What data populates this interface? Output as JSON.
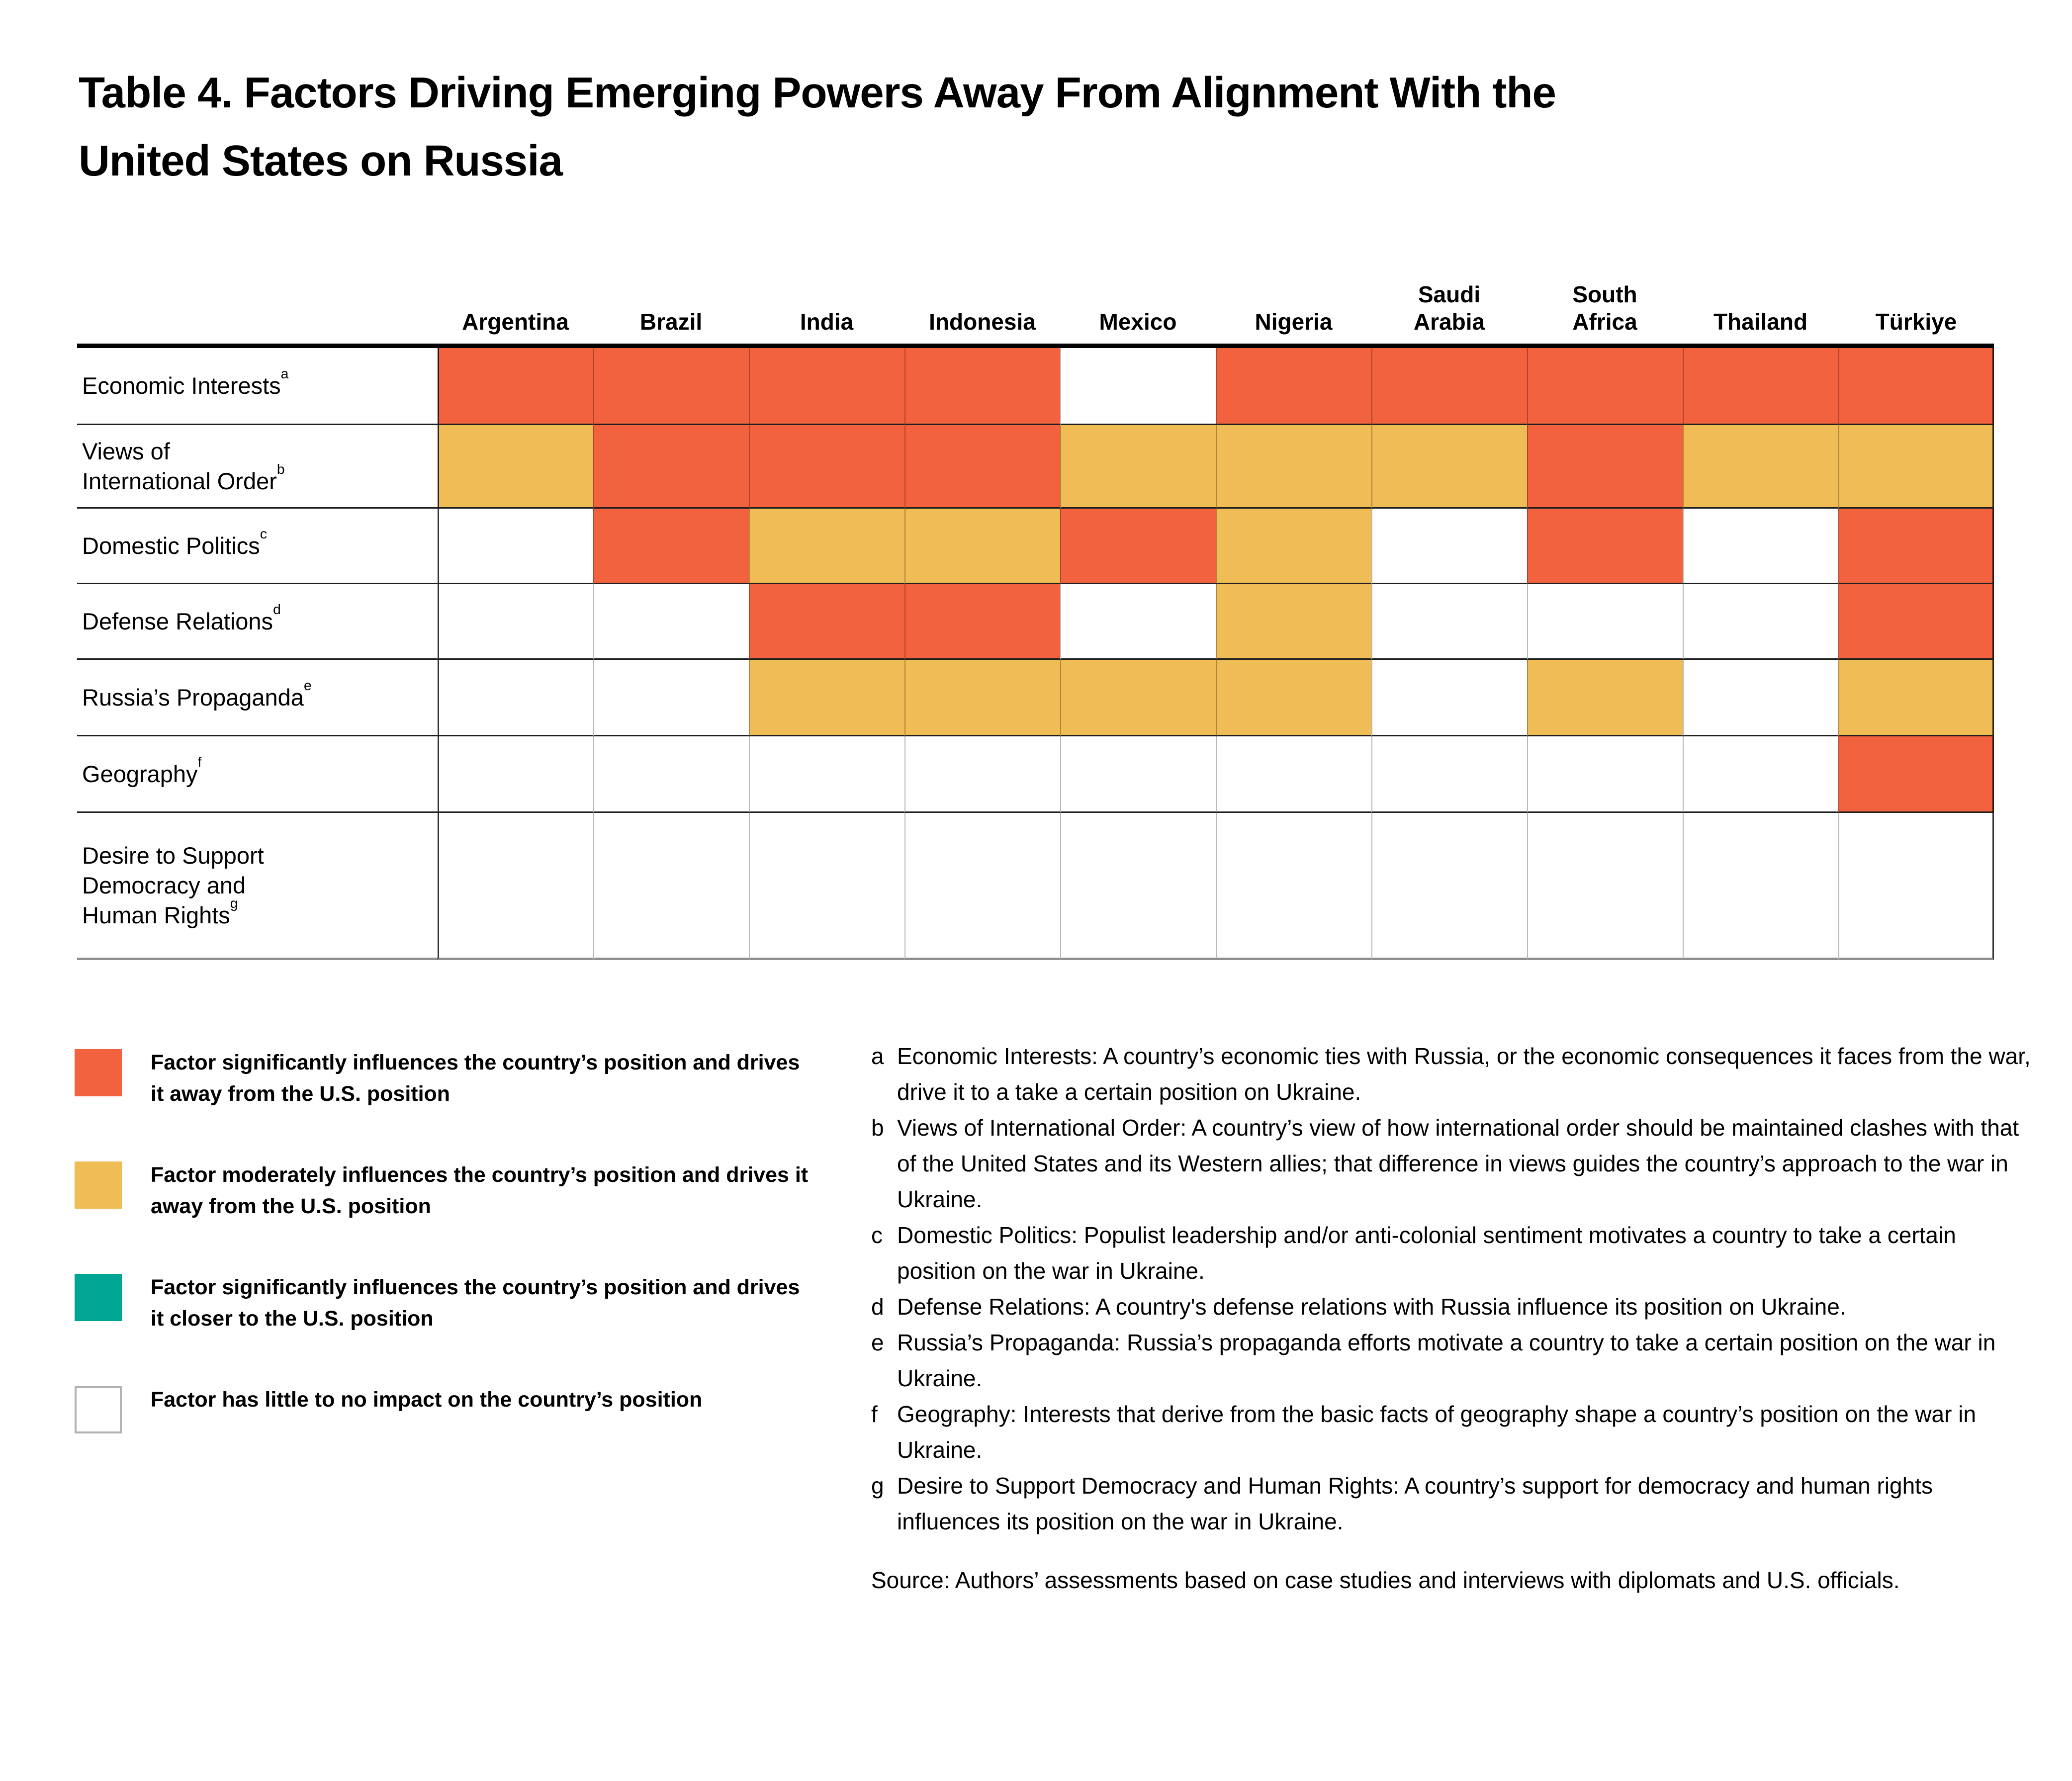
{
  "title": {
    "line1": "Table 4. Factors Driving Emerging Powers Away From Alignment With the",
    "line2": "United States on Russia"
  },
  "colors": {
    "sig-away": "#F2623E",
    "mod-away": "#F0BC55",
    "sig-closer": "#00A693",
    "none": "#FFFFFF",
    "none_swatch_border": "#B3B3B3"
  },
  "chart_data": {
    "type": "heatmap",
    "columns": [
      {
        "lines": [
          "Argentina"
        ]
      },
      {
        "lines": [
          "Brazil"
        ]
      },
      {
        "lines": [
          "India"
        ]
      },
      {
        "lines": [
          "Indonesia"
        ]
      },
      {
        "lines": [
          "Mexico"
        ]
      },
      {
        "lines": [
          "Nigeria"
        ]
      },
      {
        "lines": [
          "Saudi",
          "Arabia"
        ]
      },
      {
        "lines": [
          "South",
          "Africa"
        ]
      },
      {
        "lines": [
          "Thailand"
        ]
      },
      {
        "lines": [
          "Türkiye"
        ]
      }
    ],
    "rows": [
      {
        "lines": [
          "Economic Interests"
        ],
        "note": "a",
        "cells": [
          "sig-away",
          "sig-away",
          "sig-away",
          "sig-away",
          "none",
          "sig-away",
          "sig-away",
          "sig-away",
          "sig-away",
          "sig-away"
        ]
      },
      {
        "lines": [
          "Views of",
          "International Order"
        ],
        "note": "b",
        "cells": [
          "mod-away",
          "sig-away",
          "sig-away",
          "sig-away",
          "mod-away",
          "mod-away",
          "mod-away",
          "sig-away",
          "mod-away",
          "mod-away"
        ]
      },
      {
        "lines": [
          "Domestic Politics"
        ],
        "note": "c",
        "cells": [
          "none",
          "sig-away",
          "mod-away",
          "mod-away",
          "sig-away",
          "mod-away",
          "none",
          "sig-away",
          "none",
          "sig-away"
        ]
      },
      {
        "lines": [
          "Defense Relations"
        ],
        "note": "d",
        "cells": [
          "none",
          "none",
          "sig-away",
          "sig-away",
          "none",
          "mod-away",
          "none",
          "none",
          "none",
          "sig-away"
        ]
      },
      {
        "lines": [
          "Russia’s Propaganda"
        ],
        "note": "e",
        "cells": [
          "none",
          "none",
          "mod-away",
          "mod-away",
          "mod-away",
          "mod-away",
          "none",
          "mod-away",
          "none",
          "mod-away"
        ]
      },
      {
        "lines": [
          "Geography"
        ],
        "note": "f",
        "cells": [
          "none",
          "none",
          "none",
          "none",
          "none",
          "none",
          "none",
          "none",
          "none",
          "sig-away"
        ]
      },
      {
        "lines": [
          "Desire to Support",
          "Democracy and",
          "Human Rights"
        ],
        "note": "g",
        "cells": [
          "none",
          "none",
          "none",
          "none",
          "none",
          "none",
          "none",
          "none",
          "none",
          "none"
        ]
      }
    ]
  },
  "legend": {
    "items": [
      {
        "key": "sig-away",
        "label": "Factor significantly influences the country’s position and drives it away from the U.S. position"
      },
      {
        "key": "mod-away",
        "label": "Factor moderately influences the country’s position and drives it away from the U.S. position"
      },
      {
        "key": "sig-closer",
        "label": "Factor significantly influences the country’s position and drives it closer to the U.S. position"
      },
      {
        "key": "none",
        "label": "Factor has little to no impact on the country’s position"
      }
    ]
  },
  "footnotes": [
    {
      "letter": "a",
      "text": "Economic Interests: A country’s economic ties with Russia, or the economic consequences it faces from the war, drive it to a take a certain position on Ukraine."
    },
    {
      "letter": "b",
      "text": "Views of International Order: A country’s view of how international order should be maintained clashes with that of the United States and its Western allies; that difference in views guides the country’s approach to the war in Ukraine."
    },
    {
      "letter": "c",
      "text": "Domestic Politics: Populist leadership and/or anti-colonial sentiment motivates a country to take a certain position on the war in Ukraine."
    },
    {
      "letter": "d",
      "text": "Defense Relations: A country's defense relations with Russia influence its position on Ukraine."
    },
    {
      "letter": "e",
      "text": "Russia’s Propaganda: Russia’s propaganda efforts motivate a country to take a certain position on the war in Ukraine."
    },
    {
      "letter": "f",
      "text": "Geography: Interests that derive from the basic facts of geography shape a country’s position on the war in Ukraine."
    },
    {
      "letter": "g",
      "text": "Desire to Support Democracy and Human Rights: A country’s support for democracy and human rights influences its position on the war in Ukraine."
    }
  ],
  "source": "Source: Authors’ assessments based on case studies and interviews with diplomats and U.S. officials."
}
